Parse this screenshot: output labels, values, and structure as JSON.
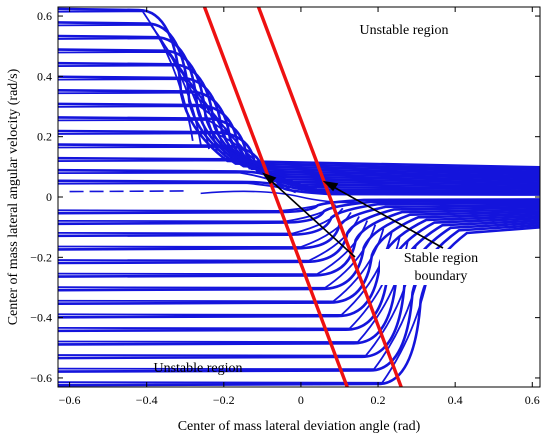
{
  "chart_data": {
    "type": "line",
    "title": "",
    "xlabel": "Center of mass lateral deviation angle (rad)",
    "ylabel": "Center of mass lateral angular velocity (rad/s)",
    "xlim": [
      -0.63,
      0.62
    ],
    "ylim": [
      -0.63,
      0.63
    ],
    "xticks": [
      -0.6,
      -0.4,
      -0.2,
      0,
      0.2,
      0.4,
      0.6
    ],
    "yticks": [
      -0.6,
      -0.4,
      -0.2,
      0,
      0.2,
      0.4,
      0.6
    ],
    "xtick_labels": [
      "−0.6",
      "−0.4",
      "−0.2",
      "0",
      "0.2",
      "0.4",
      "0.6"
    ],
    "ytick_labels": [
      "−0.6",
      "−0.4",
      "−0.2",
      "0",
      "0.2",
      "0.4",
      "0.6"
    ],
    "grid": false,
    "colors": {
      "trajectories": "#1414dc",
      "boundary": "#ee1111",
      "annotation": "#000000"
    },
    "boundary_lines": [
      {
        "x": [
          -0.25,
          0.12
        ],
        "y": [
          0.63,
          -0.63
        ]
      },
      {
        "x": [
          -0.11,
          0.26
        ],
        "y": [
          0.63,
          -0.63
        ]
      }
    ],
    "trajectories": {
      "upper_start_y": [
        0.62,
        0.575,
        0.53,
        0.485,
        0.44,
        0.395,
        0.35,
        0.305,
        0.26,
        0.215,
        0.17,
        0.125,
        0.085,
        0.05
      ],
      "lower_start_y": [
        -0.05,
        -0.085,
        -0.125,
        -0.17,
        -0.215,
        -0.26,
        -0.305,
        -0.35,
        -0.395,
        -0.44,
        -0.485,
        -0.53,
        -0.575,
        -0.62
      ],
      "center": [
        0.0,
        0.0
      ]
    },
    "annotations": {
      "top": "Unstable region",
      "bottom": "Unstable region",
      "stable_line1": "Stable region",
      "stable_line2": "boundary"
    }
  }
}
